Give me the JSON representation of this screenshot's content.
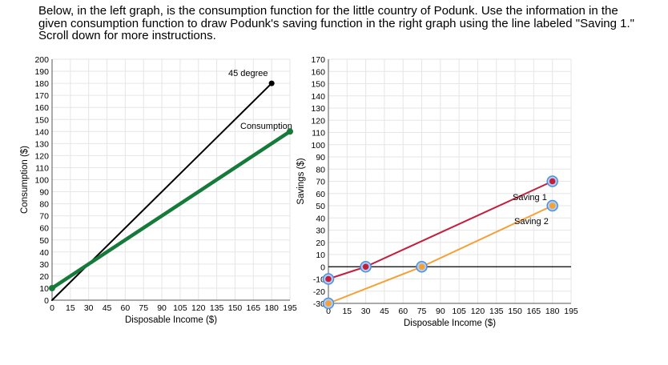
{
  "instructions": "Below, in the left graph, is the consumption function for the little country of Podunk. Use the information in the given consumption function to draw Podunk's saving function in the right graph using the line labeled \"Saving 1.\" Scroll down for more instructions.",
  "chart_data": [
    {
      "type": "line",
      "xlabel": "Disposable Income ($)",
      "ylabel": "Consumption ($)",
      "xlim": [
        0,
        195
      ],
      "ylim": [
        0,
        200
      ],
      "xticks": [
        0,
        15,
        30,
        45,
        60,
        75,
        90,
        105,
        120,
        135,
        150,
        165,
        180,
        195
      ],
      "yticks": [
        0,
        10,
        20,
        30,
        40,
        50,
        60,
        70,
        80,
        90,
        100,
        110,
        120,
        130,
        140,
        150,
        160,
        170,
        180,
        190,
        200
      ],
      "grid": true,
      "series": [
        {
          "name": "45 degree",
          "color": "#000000",
          "points": [
            [
              0,
              0
            ],
            [
              180,
              180
            ]
          ]
        },
        {
          "name": "Consumption",
          "color": "#157a3a",
          "points": [
            [
              0,
              10
            ],
            [
              195,
              140
            ]
          ]
        }
      ]
    },
    {
      "type": "line",
      "xlabel": "Disposable Income ($)",
      "ylabel": "Savings ($)",
      "xlim": [
        0,
        195
      ],
      "ylim": [
        -30,
        170
      ],
      "xticks": [
        0,
        15,
        30,
        45,
        60,
        75,
        90,
        105,
        120,
        135,
        150,
        165,
        180,
        195
      ],
      "yticks": [
        -30,
        -20,
        -10,
        0,
        10,
        20,
        30,
        40,
        50,
        60,
        70,
        80,
        90,
        100,
        110,
        120,
        130,
        140,
        150,
        160,
        170
      ],
      "grid": true,
      "series": [
        {
          "name": "Saving 1",
          "color": "#c41e3a",
          "points": [
            [
              0,
              -10
            ],
            [
              30,
              0
            ],
            [
              180,
              70
            ]
          ]
        },
        {
          "name": "Saving 2",
          "color": "#f7a035",
          "points": [
            [
              0,
              -30
            ],
            [
              75,
              0
            ],
            [
              180,
              50
            ]
          ]
        }
      ]
    }
  ]
}
